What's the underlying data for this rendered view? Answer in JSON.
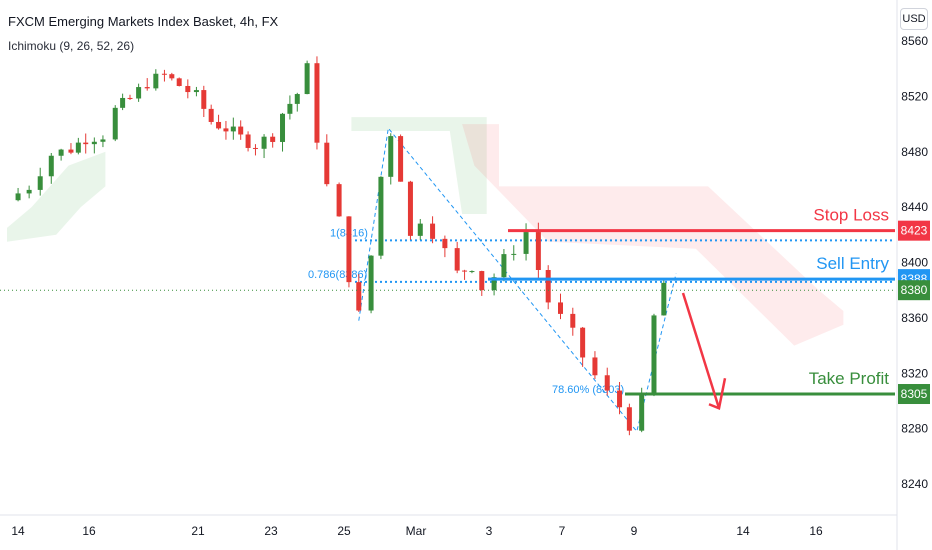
{
  "header": {
    "title": "FXCM Emerging Markets Index Basket, 4h, FX",
    "indicator": "Ichimoku (9, 26, 52, 26)",
    "currency": "USD"
  },
  "chart_data": {
    "type": "candlestick",
    "symbol": "FXCM Emerging Markets Index Basket",
    "timeframe": "4h",
    "exchange": "FX",
    "currency": "USD",
    "y_ticks": [
      8560,
      8520,
      8480,
      8440,
      8400,
      8360,
      8320,
      8280,
      8240
    ],
    "ylim": [
      8225,
      8575
    ],
    "x_ticks": [
      "14",
      "16",
      "21",
      "23",
      "25",
      "Mar",
      "3",
      "7",
      "9",
      "14",
      "16"
    ],
    "current_price": 8380,
    "levels": [
      {
        "name": "Stop Loss",
        "price": 8423,
        "color": "#f23645"
      },
      {
        "name": "Sell Entry",
        "price": 8388,
        "color": "#2196f3"
      },
      {
        "name": "Take Profit",
        "price": 8305,
        "color": "#388e3c"
      }
    ],
    "fib_labels": [
      {
        "text": "1(8416)",
        "price": 8416
      },
      {
        "text": "0.786(8386)",
        "price": 8386
      },
      {
        "text": "78.60% (8303)",
        "price": 8303
      }
    ],
    "price_path": [
      [
        0,
        8445
      ],
      [
        0.9,
        8455
      ],
      [
        1.8,
        8478
      ],
      [
        2.6,
        8482
      ],
      [
        3.2,
        8490
      ],
      [
        3.9,
        8492
      ],
      [
        4.4,
        8510
      ],
      [
        5.0,
        8518
      ],
      [
        5.7,
        8530
      ],
      [
        6.4,
        8535
      ],
      [
        7.0,
        8528
      ],
      [
        7.7,
        8520
      ],
      [
        8.3,
        8502
      ],
      [
        8.9,
        8497
      ],
      [
        9.5,
        8490
      ],
      [
        10.1,
        8485
      ],
      [
        10.8,
        8492
      ],
      [
        11.2,
        8508
      ],
      [
        11.8,
        8522
      ],
      [
        12.2,
        8540
      ],
      [
        12.6,
        8490
      ],
      [
        13.0,
        8455
      ],
      [
        13.5,
        8430
      ],
      [
        13.9,
        8390
      ],
      [
        14.3,
        8362
      ],
      [
        14.8,
        8405
      ],
      [
        15.2,
        8462
      ],
      [
        15.6,
        8494
      ],
      [
        16.0,
        8462
      ],
      [
        16.4,
        8418
      ],
      [
        16.8,
        8432
      ],
      [
        17.3,
        8422
      ],
      [
        17.8,
        8408
      ],
      [
        18.3,
        8392
      ],
      [
        18.9,
        8398
      ],
      [
        19.3,
        8382
      ],
      [
        19.8,
        8390
      ],
      [
        20.2,
        8402
      ],
      [
        20.6,
        8410
      ],
      [
        21.1,
        8422
      ],
      [
        21.6,
        8395
      ],
      [
        22.0,
        8372
      ],
      [
        22.5,
        8360
      ],
      [
        23.0,
        8348
      ],
      [
        23.4,
        8332
      ],
      [
        23.9,
        8318
      ],
      [
        24.4,
        8305
      ],
      [
        24.9,
        8296
      ],
      [
        25.3,
        8283
      ],
      [
        25.8,
        8300
      ],
      [
        26.3,
        8360
      ],
      [
        26.7,
        8385
      ],
      [
        27.2,
        8380
      ],
      [
        27.6,
        8380
      ]
    ],
    "ichimoku_cloud_green": [
      [
        14.0,
        8495
      ],
      [
        18.0,
        8495
      ],
      [
        18.5,
        8435
      ],
      [
        19.5,
        8435
      ],
      [
        19.5,
        8505
      ],
      [
        14.0,
        8505
      ]
    ],
    "ichimoku_cloud_red": [
      [
        18.5,
        8500
      ],
      [
        20.0,
        8500
      ],
      [
        20.0,
        8455
      ],
      [
        28.5,
        8455
      ],
      [
        33.0,
        8380
      ],
      [
        34.0,
        8365
      ],
      [
        34.0,
        8355
      ],
      [
        32.0,
        8340
      ],
      [
        28.0,
        8410
      ],
      [
        22.0,
        8415
      ],
      [
        19.0,
        8470
      ]
    ],
    "projection_arrow": {
      "from": [
        27.8,
        8378
      ],
      "to": [
        29.7,
        8320
      ]
    }
  }
}
